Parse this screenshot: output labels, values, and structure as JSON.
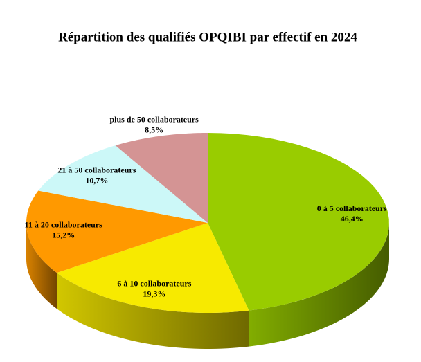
{
  "chart_data": {
    "type": "pie3d",
    "title": "Répartition des qualifiés OPQIBI par effectif en 2024",
    "categories": [
      "0 à 5 collaborateurs",
      "6 à 10 collaborateurs",
      "11 à 20 collaborateurs",
      "21 à 50 collaborateurs",
      "plus de 50 collaborateurs"
    ],
    "values": [
      46.4,
      19.3,
      15.2,
      10.7,
      8.5
    ],
    "value_labels": [
      "46,4%",
      "19,3%",
      "15,2%",
      "10,7%",
      "8,5%"
    ],
    "colors": [
      "#99cc00",
      "#f7ea00",
      "#ff9900",
      "#ccf8f8",
      "#d49494"
    ]
  }
}
